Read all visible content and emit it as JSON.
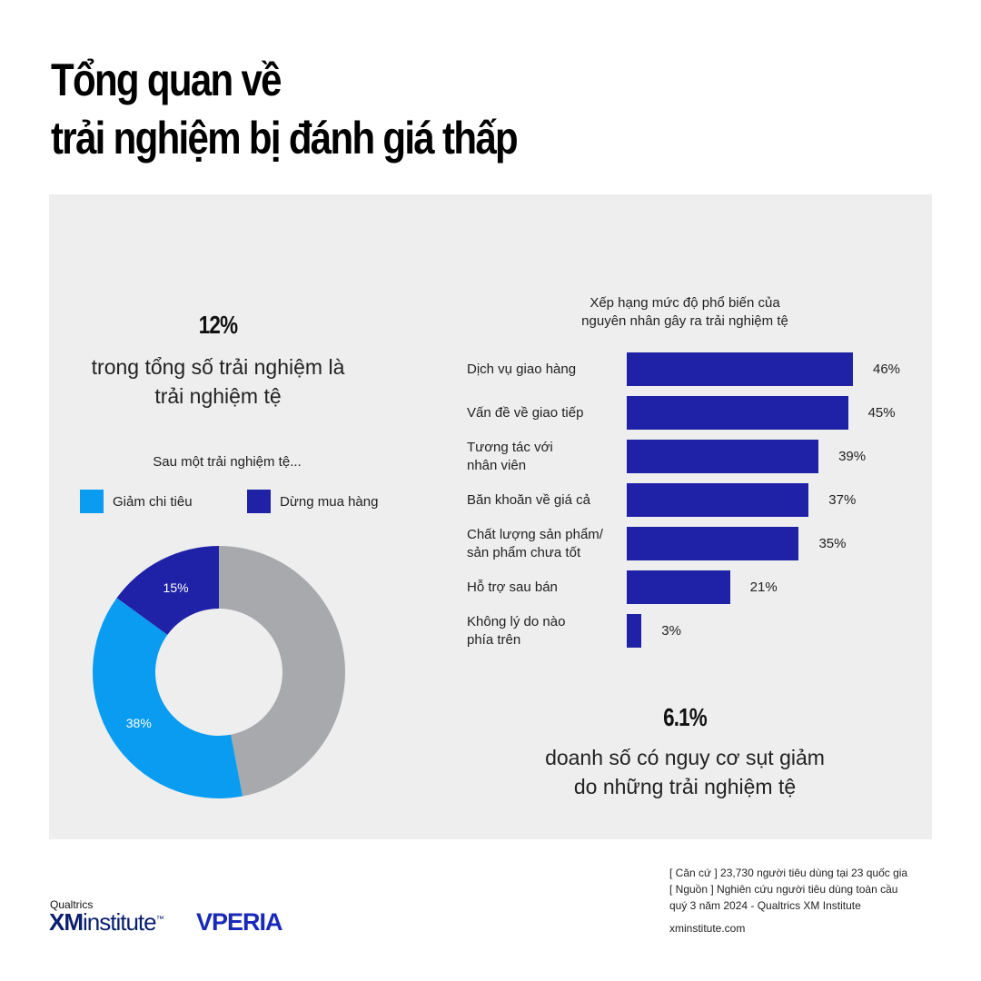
{
  "title": {
    "line1": "Tổng quan về",
    "line2": "trải nghiệm bị đánh giá thấp"
  },
  "left": {
    "stat_value": "12%",
    "stat_text_line1": "trong tổng số trải nghiệm là",
    "stat_text_line2": "trải nghiệm tệ",
    "subtitle": "Sau một trải nghiệm tệ...",
    "legend": [
      {
        "label": "Giảm chi tiêu",
        "color": "#0a9cf0"
      },
      {
        "label": "Dừng mua hàng",
        "color": "#1f22a6"
      }
    ]
  },
  "right": {
    "chart_title_line1": "Xếp hạng mức độ phổ biến của",
    "chart_title_line2": "nguyên nhân gây ra trải nghiệm tệ",
    "stat_value": "6.1%",
    "stat_text_line1": "doanh số có nguy cơ sụt giảm",
    "stat_text_line2": "do những trải nghiệm tệ"
  },
  "chart_data": [
    {
      "type": "pie",
      "donut": true,
      "subtitle": "Sau một trải nghiệm tệ...",
      "slices": [
        {
          "name": "Giảm chi tiêu",
          "value": 38,
          "label": "38%",
          "color": "#0a9cf0"
        },
        {
          "name": "Dừng mua hàng",
          "value": 15,
          "label": "15%",
          "color": "#1f22a6"
        },
        {
          "name": "",
          "value": 47,
          "label": "",
          "color": "#a7a9ad"
        }
      ]
    },
    {
      "type": "bar",
      "orientation": "horizontal",
      "title": "Xếp hạng mức độ phổ biến của nguyên nhân gây ra trải nghiệm tệ",
      "color": "#1f22a6",
      "categories": [
        [
          "Dịch vụ giao hàng"
        ],
        [
          "Vấn đề về giao tiếp"
        ],
        [
          "Tương tác với",
          "nhân viên"
        ],
        [
          "Băn khoăn về giá cả"
        ],
        [
          "Chất lượng sản phẩm/",
          "sản phẩm chưa tốt"
        ],
        [
          "Hỗ trợ sau bán"
        ],
        [
          "Không lý do nào",
          "phía trên"
        ]
      ],
      "values": [
        46,
        45,
        39,
        37,
        35,
        21,
        3
      ],
      "value_labels": [
        "46%",
        "45%",
        "39%",
        "37%",
        "35%",
        "21%",
        "3%"
      ],
      "xlim": [
        0,
        46
      ]
    }
  ],
  "footer": {
    "line1": "[ Căn cứ ] 23,730 người tiêu dùng tại 23 quốc gia",
    "line2": "[ Nguồn ] Nghiên cứu người tiêu dùng toàn cầu",
    "line3": "quý 3 năm 2024 - Qualtrics XM Institute",
    "url": "xminstitute.com",
    "logo_qualtrics": "Qualtrics",
    "logo_xm": "XM",
    "logo_institute": "institute",
    "logo_tm": "™",
    "logo_vperia": "VPERIA"
  }
}
